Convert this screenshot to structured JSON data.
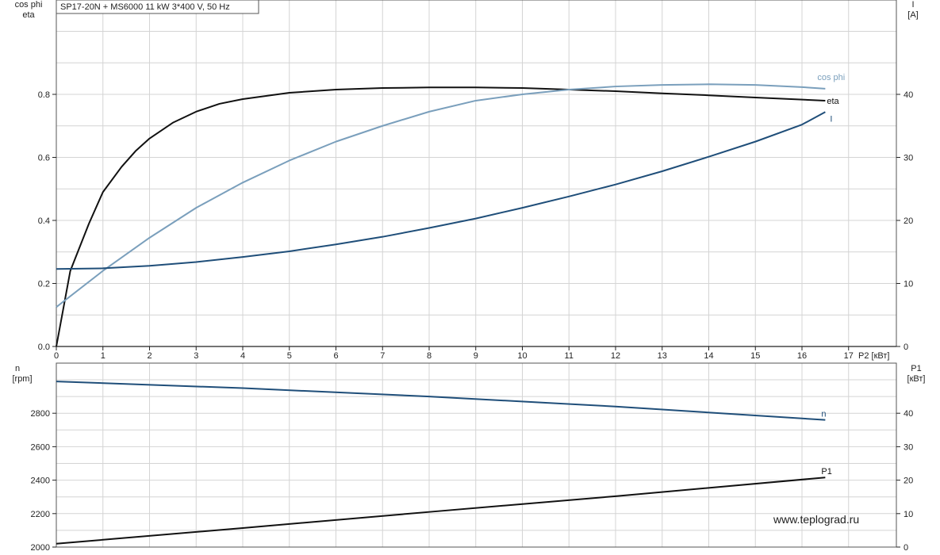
{
  "chart_data": [
    {
      "type": "line",
      "title": "SP17-20N + MS6000   11 kW   3*400 V, 50 Hz",
      "xlabel": "P2 [кВт]",
      "ylabel_left": [
        "cos phi",
        "eta"
      ],
      "ylabel_right": [
        "I",
        "[A]"
      ],
      "xlim": [
        0,
        18
      ],
      "ylim_left": [
        0,
        1.0
      ],
      "ylim_right": [
        0,
        50
      ],
      "x_ticks": [
        "0",
        "1",
        "2",
        "3",
        "4",
        "5",
        "6",
        "7",
        "8",
        "9",
        "10",
        "11",
        "12",
        "13",
        "14",
        "15",
        "16",
        "17"
      ],
      "y_ticks_left": [
        "0.0",
        "0.2",
        "0.4",
        "0.6",
        "0.8"
      ],
      "y_ticks_right": [
        "0",
        "10",
        "20",
        "30",
        "40"
      ],
      "grid": true,
      "series": [
        {
          "name": "eta",
          "axis": "left",
          "color": "#111111",
          "x": [
            0,
            0.3,
            0.7,
            1,
            1.4,
            1.7,
            2,
            2.5,
            3,
            3.5,
            4,
            5,
            6,
            7,
            8,
            9,
            10,
            11,
            12,
            13,
            14,
            15,
            16.5
          ],
          "y": [
            0,
            0.24,
            0.39,
            0.49,
            0.57,
            0.62,
            0.66,
            0.71,
            0.745,
            0.77,
            0.785,
            0.805,
            0.815,
            0.82,
            0.822,
            0.822,
            0.82,
            0.815,
            0.81,
            0.803,
            0.797,
            0.79,
            0.78
          ]
        },
        {
          "name": "cos phi",
          "axis": "left",
          "color": "#7a9fbc",
          "x": [
            0,
            1,
            2,
            3,
            4,
            5,
            6,
            7,
            8,
            9,
            10,
            11,
            12,
            13,
            14,
            15,
            16,
            16.5
          ],
          "y": [
            0.125,
            0.24,
            0.345,
            0.44,
            0.52,
            0.59,
            0.65,
            0.7,
            0.745,
            0.78,
            0.8,
            0.815,
            0.825,
            0.83,
            0.832,
            0.83,
            0.823,
            0.818
          ]
        },
        {
          "name": "I",
          "axis": "right",
          "color": "#1f4e79",
          "x": [
            0,
            1,
            2,
            3,
            4,
            5,
            6,
            7,
            8,
            9,
            10,
            11,
            12,
            13,
            14,
            15,
            16,
            16.5
          ],
          "y": [
            12.3,
            12.4,
            12.8,
            13.4,
            14.2,
            15.1,
            16.2,
            17.4,
            18.8,
            20.3,
            22,
            23.8,
            25.7,
            27.8,
            30.1,
            32.5,
            35.2,
            37.2
          ]
        }
      ]
    },
    {
      "type": "line",
      "xlim": [
        0,
        18
      ],
      "ylabel_left": [
        "n",
        "[rpm]"
      ],
      "ylabel_right": [
        "P1",
        "[кВт]"
      ],
      "ylim_left": [
        2000,
        3050
      ],
      "ylim_right": [
        0,
        50
      ],
      "y_ticks_left": [
        "2000",
        "2200",
        "2400",
        "2600",
        "2800"
      ],
      "y_ticks_right": [
        "0",
        "10",
        "20",
        "30",
        "40"
      ],
      "grid": true,
      "series": [
        {
          "name": "n",
          "axis": "left",
          "color": "#1f4e79",
          "x": [
            0,
            4,
            8,
            12,
            16.5
          ],
          "y": [
            2990,
            2950,
            2900,
            2840,
            2760
          ]
        },
        {
          "name": "P1",
          "axis": "right",
          "color": "#111111",
          "x": [
            0,
            4,
            8,
            12,
            16.5
          ],
          "y": [
            1,
            5.7,
            10.5,
            15.2,
            20.8
          ]
        }
      ]
    }
  ],
  "watermark": "www.teplograd.ru"
}
